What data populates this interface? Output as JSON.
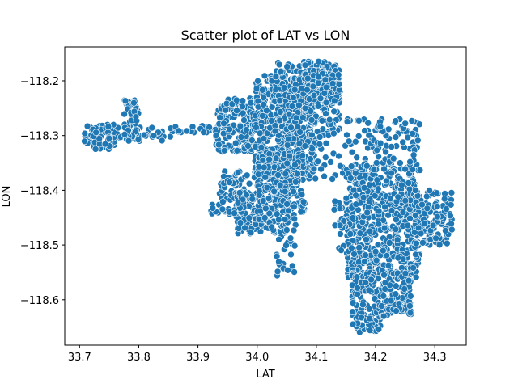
{
  "chart_data": {
    "type": "scatter",
    "title": "Scatter plot of LAT vs LON",
    "xlabel": "LAT",
    "ylabel": "LON",
    "xlim": [
      33.675,
      34.353
    ],
    "ylim": [
      -118.683,
      -118.138
    ],
    "xticks": [
      33.7,
      33.8,
      33.9,
      34.0,
      34.1,
      34.2,
      34.3
    ],
    "xtick_labels": [
      "33.7",
      "33.8",
      "33.9",
      "34.0",
      "34.1",
      "34.2",
      "34.3"
    ],
    "yticks": [
      -118.6,
      -118.5,
      -118.4,
      -118.3,
      -118.2
    ],
    "ytick_labels": [
      "−118.6",
      "−118.5",
      "−118.4",
      "−118.3",
      "−118.2"
    ],
    "grid": false,
    "marker_color": "#1f77b4",
    "clusters": [
      {
        "x": [
          33.708,
          33.77
        ],
        "y": [
          -118.325,
          -118.28
        ],
        "n": 70
      },
      {
        "x": [
          33.77,
          33.86
        ],
        "y": [
          -118.31,
          -118.285
        ],
        "n": 35
      },
      {
        "x": [
          33.775,
          33.8
        ],
        "y": [
          -118.31,
          -118.235
        ],
        "n": 55
      },
      {
        "x": [
          33.86,
          33.935
        ],
        "y": [
          -118.295,
          -118.282
        ],
        "n": 25
      },
      {
        "x": [
          33.93,
          33.995
        ],
        "y": [
          -118.33,
          -118.232
        ],
        "n": 160
      },
      {
        "x": [
          33.995,
          34.1
        ],
        "y": [
          -118.38,
          -118.19
        ],
        "n": 520
      },
      {
        "x": [
          34.03,
          34.14
        ],
        "y": [
          -118.3,
          -118.165
        ],
        "n": 260
      },
      {
        "x": [
          34.08,
          34.14
        ],
        "y": [
          -118.24,
          -118.18
        ],
        "n": 120
      },
      {
        "x": [
          34.0,
          34.08
        ],
        "y": [
          -118.44,
          -118.33
        ],
        "n": 180
      },
      {
        "x": [
          33.935,
          33.99
        ],
        "y": [
          -118.45,
          -118.365
        ],
        "n": 70
      },
      {
        "x": [
          33.965,
          34.01
        ],
        "y": [
          -118.48,
          -118.4
        ],
        "n": 90
      },
      {
        "x": [
          34.01,
          34.065
        ],
        "y": [
          -118.48,
          -118.39
        ],
        "n": 90
      },
      {
        "x": [
          34.03,
          34.065
        ],
        "y": [
          -118.56,
          -118.47
        ],
        "n": 25
      },
      {
        "x": [
          34.1,
          34.2
        ],
        "y": [
          -118.38,
          -118.27
        ],
        "n": 60
      },
      {
        "x": [
          34.15,
          34.275
        ],
        "y": [
          -118.56,
          -118.35
        ],
        "n": 560
      },
      {
        "x": [
          34.2,
          34.275
        ],
        "y": [
          -118.35,
          -118.27
        ],
        "n": 70
      },
      {
        "x": [
          34.265,
          34.33
        ],
        "y": [
          -118.5,
          -118.4
        ],
        "n": 110
      },
      {
        "x": [
          34.16,
          34.21
        ],
        "y": [
          -118.66,
          -118.55
        ],
        "n": 120
      },
      {
        "x": [
          34.21,
          34.26
        ],
        "y": [
          -118.63,
          -118.55
        ],
        "n": 110
      },
      {
        "x": [
          34.13,
          34.16
        ],
        "y": [
          -118.51,
          -118.42
        ],
        "n": 20
      },
      {
        "x": [
          33.92,
          33.98
        ],
        "y": [
          -118.445,
          -118.42
        ],
        "n": 15
      }
    ]
  }
}
